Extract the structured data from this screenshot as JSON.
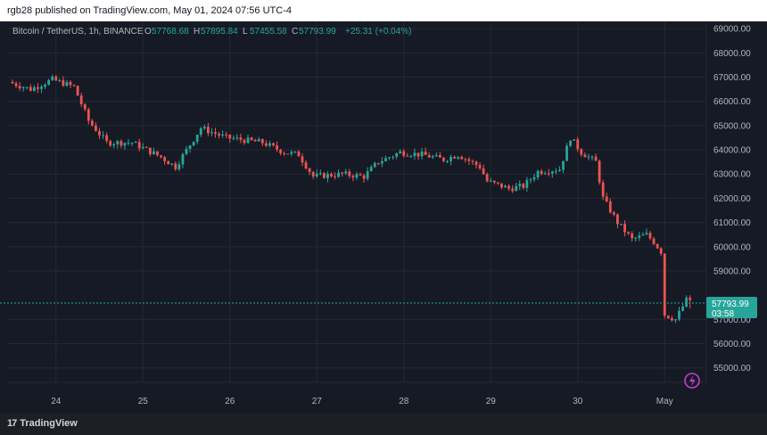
{
  "header": {
    "published": "rgb28 published on TradingView.com, May 01, 2024 07:56 UTC-4"
  },
  "legend": {
    "symbol": "Bitcoin / TetherUS, 1h, BINANCE",
    "o_label": "O",
    "o_value": "57768.68",
    "h_label": "H",
    "h_value": "57895.84",
    "l_label": "L",
    "l_value": "57455.58",
    "c_label": "C",
    "c_value": "57793.99",
    "change": "+25.31 (+0.04%)"
  },
  "price_tag": {
    "price": "57793.99",
    "countdown": "03:58"
  },
  "footer": {
    "logo_mark": "17",
    "brand": "TradingView"
  },
  "colors": {
    "up": "#26a69a",
    "down": "#ef5350",
    "background": "#161a25",
    "grid": "#242833",
    "text": "#b2b5be",
    "price_tag": "#26a69a",
    "bolt": "#c73bd6"
  },
  "icons": {
    "bolt": "lightning-bolt-icon"
  },
  "chart_data": {
    "type": "candlestick",
    "title": "Bitcoin / TetherUS, 1h, BINANCE",
    "xlabel": "",
    "ylabel": "",
    "y_ticks": [
      "69000.00",
      "68000.00",
      "67000.00",
      "66000.00",
      "65000.00",
      "64000.00",
      "63000.00",
      "62000.00",
      "61000.00",
      "60000.00",
      "59000.00",
      "57000.00",
      "56000.00",
      "55000.00"
    ],
    "ylim": [
      54400,
      69300
    ],
    "x_ticks": [
      "24",
      "25",
      "26",
      "27",
      "28",
      "29",
      "30",
      "May"
    ],
    "last_price": 57793.99,
    "grid": true,
    "series": [
      {
        "interval": "1h",
        "waypoints": [
          [
            "2024-04-23 12:00",
            66800
          ],
          [
            "2024-04-23 18:00",
            66500
          ],
          [
            "2024-04-24 00:00",
            66900
          ],
          [
            "2024-04-24 06:00",
            66600
          ],
          [
            "2024-04-24 10:00",
            65200
          ],
          [
            "2024-04-24 15:00",
            64300
          ],
          [
            "2024-04-24 22:00",
            64300
          ],
          [
            "2024-04-25 06:00",
            63700
          ],
          [
            "2024-04-25 10:00",
            63300
          ],
          [
            "2024-04-25 17:00",
            64900
          ],
          [
            "2024-04-26 00:00",
            64500
          ],
          [
            "2024-04-26 10:00",
            64300
          ],
          [
            "2024-04-26 16:00",
            63900
          ],
          [
            "2024-04-26 20:00",
            63800
          ],
          [
            "2024-04-27 00:00",
            62900
          ],
          [
            "2024-04-27 08:00",
            63000
          ],
          [
            "2024-04-27 14:00",
            62900
          ],
          [
            "2024-04-27 18:00",
            63500
          ],
          [
            "2024-04-28 00:00",
            63900
          ],
          [
            "2024-04-28 06:00",
            63800
          ],
          [
            "2024-04-28 12:00",
            63600
          ],
          [
            "2024-04-28 16:00",
            63800
          ],
          [
            "2024-04-28 22:00",
            63300
          ],
          [
            "2024-04-29 00:00",
            62700
          ],
          [
            "2024-04-29 06:00",
            62400
          ],
          [
            "2024-04-29 10:00",
            62500
          ],
          [
            "2024-04-29 14:00",
            63100
          ],
          [
            "2024-04-29 20:00",
            63200
          ],
          [
            "2024-04-29 23:00",
            64500
          ],
          [
            "2024-04-30 02:00",
            63900
          ],
          [
            "2024-04-30 06:00",
            63500
          ],
          [
            "2024-04-30 08:00",
            62000
          ],
          [
            "2024-04-30 12:00",
            61000
          ],
          [
            "2024-04-30 16:00",
            60300
          ],
          [
            "2024-04-30 20:00",
            60500
          ],
          [
            "2024-04-30 22:00",
            60200
          ],
          [
            "2024-05-01 00:00",
            59800
          ],
          [
            "2024-05-01 01:00",
            57200
          ],
          [
            "2024-05-01 04:00",
            57000
          ],
          [
            "2024-05-01 07:00",
            57794
          ]
        ]
      }
    ]
  }
}
